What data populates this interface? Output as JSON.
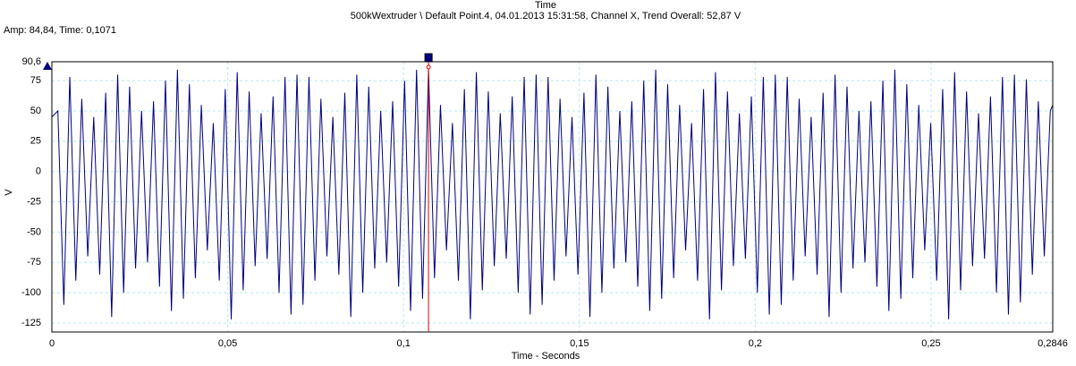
{
  "chart_data": {
    "type": "line",
    "title": "Time",
    "subtitle": "500kWextruder \\ Default Point.4, 04.01.2013 15:31:58, Channel X, Trend Overall: 52,87 V",
    "cursor_label": "Amp: 84,84, Time: 0,1071",
    "cursor_x": 0.1071,
    "xlabel": "Time - Seconds",
    "ylabel": "V",
    "color": "#000080",
    "cursor_color": "#e00000",
    "grid": true,
    "xlim": [
      0,
      0.2846
    ],
    "ylim": [
      -132.4,
      90.6
    ],
    "xticks": [
      0,
      {
        "value": 0.05,
        "label": "0,05"
      },
      {
        "value": 0.1,
        "label": "0,1"
      },
      {
        "value": 0.15,
        "label": "0,15"
      },
      {
        "value": 0.2,
        "label": "0,2"
      },
      {
        "value": 0.25,
        "label": "0,25"
      },
      {
        "value": 0.2846,
        "label": "0,2846"
      }
    ],
    "yticks": [
      {
        "value": 90.6,
        "label": "90,6"
      },
      75,
      50,
      25,
      0,
      -25,
      -50,
      -75,
      -100,
      -125
    ],
    "x": [
      0,
      0.0017,
      0.0034,
      0.0051,
      0.0068,
      0.0085,
      0.0102,
      0.0119,
      0.0136,
      0.0153,
      0.017,
      0.0187,
      0.0204,
      0.0221,
      0.0238,
      0.0255,
      0.0272,
      0.0289,
      0.0306,
      0.0323,
      0.034,
      0.0357,
      0.0374,
      0.0391,
      0.0408,
      0.0425,
      0.0442,
      0.0459,
      0.0476,
      0.0493,
      0.051,
      0.0527,
      0.0544,
      0.0561,
      0.0578,
      0.0595,
      0.0612,
      0.0629,
      0.0646,
      0.0663,
      0.068,
      0.0697,
      0.0714,
      0.0731,
      0.0748,
      0.0765,
      0.0782,
      0.0799,
      0.0816,
      0.0833,
      0.085,
      0.0867,
      0.0884,
      0.0901,
      0.0918,
      0.0935,
      0.0952,
      0.0969,
      0.0986,
      0.1003,
      0.102,
      0.1037,
      0.1054,
      0.1071,
      0.1088,
      0.1105,
      0.1122,
      0.1139,
      0.1156,
      0.1173,
      0.119,
      0.1207,
      0.1224,
      0.1241,
      0.1258,
      0.1275,
      0.1292,
      0.1309,
      0.1326,
      0.1343,
      0.136,
      0.1377,
      0.1394,
      0.1411,
      0.1428,
      0.1445,
      0.1462,
      0.1479,
      0.1496,
      0.1513,
      0.153,
      0.1547,
      0.1564,
      0.1581,
      0.1598,
      0.1615,
      0.1632,
      0.1649,
      0.1666,
      0.1683,
      0.17,
      0.1717,
      0.1734,
      0.1751,
      0.1768,
      0.1785,
      0.1802,
      0.1819,
      0.1836,
      0.1853,
      0.187,
      0.1887,
      0.1904,
      0.1921,
      0.1938,
      0.1955,
      0.1972,
      0.1989,
      0.2006,
      0.2023,
      0.204,
      0.2057,
      0.2074,
      0.2091,
      0.2108,
      0.2125,
      0.2142,
      0.2159,
      0.2176,
      0.2193,
      0.221,
      0.2227,
      0.2244,
      0.2261,
      0.2278,
      0.2295,
      0.2312,
      0.2329,
      0.2346,
      0.2363,
      0.238,
      0.2397,
      0.2414,
      0.2431,
      0.2448,
      0.2465,
      0.2482,
      0.2499,
      0.2516,
      0.2533,
      0.255,
      0.2567,
      0.2584,
      0.2601,
      0.2618,
      0.2635,
      0.2652,
      0.2669,
      0.2686,
      0.2703,
      0.272,
      0.2737,
      0.2754,
      0.2771,
      0.2788,
      0.2805,
      0.2822,
      0.2839,
      0.2846
    ],
    "values": [
      45,
      50,
      -110,
      78,
      -90,
      60,
      -70,
      45,
      -85,
      65,
      -120,
      80,
      -100,
      70,
      -80,
      50,
      -75,
      58,
      -95,
      75,
      -115,
      84,
      -105,
      72,
      -88,
      55,
      -65,
      40,
      -90,
      68,
      -122,
      82,
      -98,
      66,
      -78,
      48,
      -72,
      62,
      -100,
      78,
      -118,
      80,
      -110,
      78,
      -90,
      60,
      -70,
      45,
      -85,
      65,
      -120,
      80,
      -100,
      70,
      -80,
      50,
      -75,
      58,
      -95,
      75,
      -115,
      84,
      -105,
      84.84,
      -88,
      55,
      -65,
      40,
      -90,
      68,
      -122,
      82,
      -98,
      66,
      -78,
      48,
      -72,
      62,
      -100,
      78,
      -118,
      80,
      -110,
      78,
      -90,
      60,
      -70,
      45,
      -85,
      65,
      -120,
      80,
      -100,
      70,
      -80,
      50,
      -75,
      58,
      -95,
      75,
      -115,
      84,
      -105,
      72,
      -88,
      55,
      -65,
      40,
      -90,
      68,
      -122,
      82,
      -98,
      66,
      -78,
      48,
      -72,
      62,
      -100,
      78,
      -118,
      80,
      -110,
      78,
      -90,
      60,
      -70,
      45,
      -85,
      65,
      -120,
      80,
      -100,
      70,
      -80,
      50,
      -75,
      58,
      -95,
      75,
      -115,
      84,
      -105,
      72,
      -88,
      55,
      -65,
      40,
      -90,
      68,
      -122,
      82,
      -98,
      66,
      -78,
      48,
      -72,
      62,
      -100,
      78,
      -118,
      80,
      -108,
      76,
      -85,
      58,
      -70,
      50,
      55
    ]
  }
}
